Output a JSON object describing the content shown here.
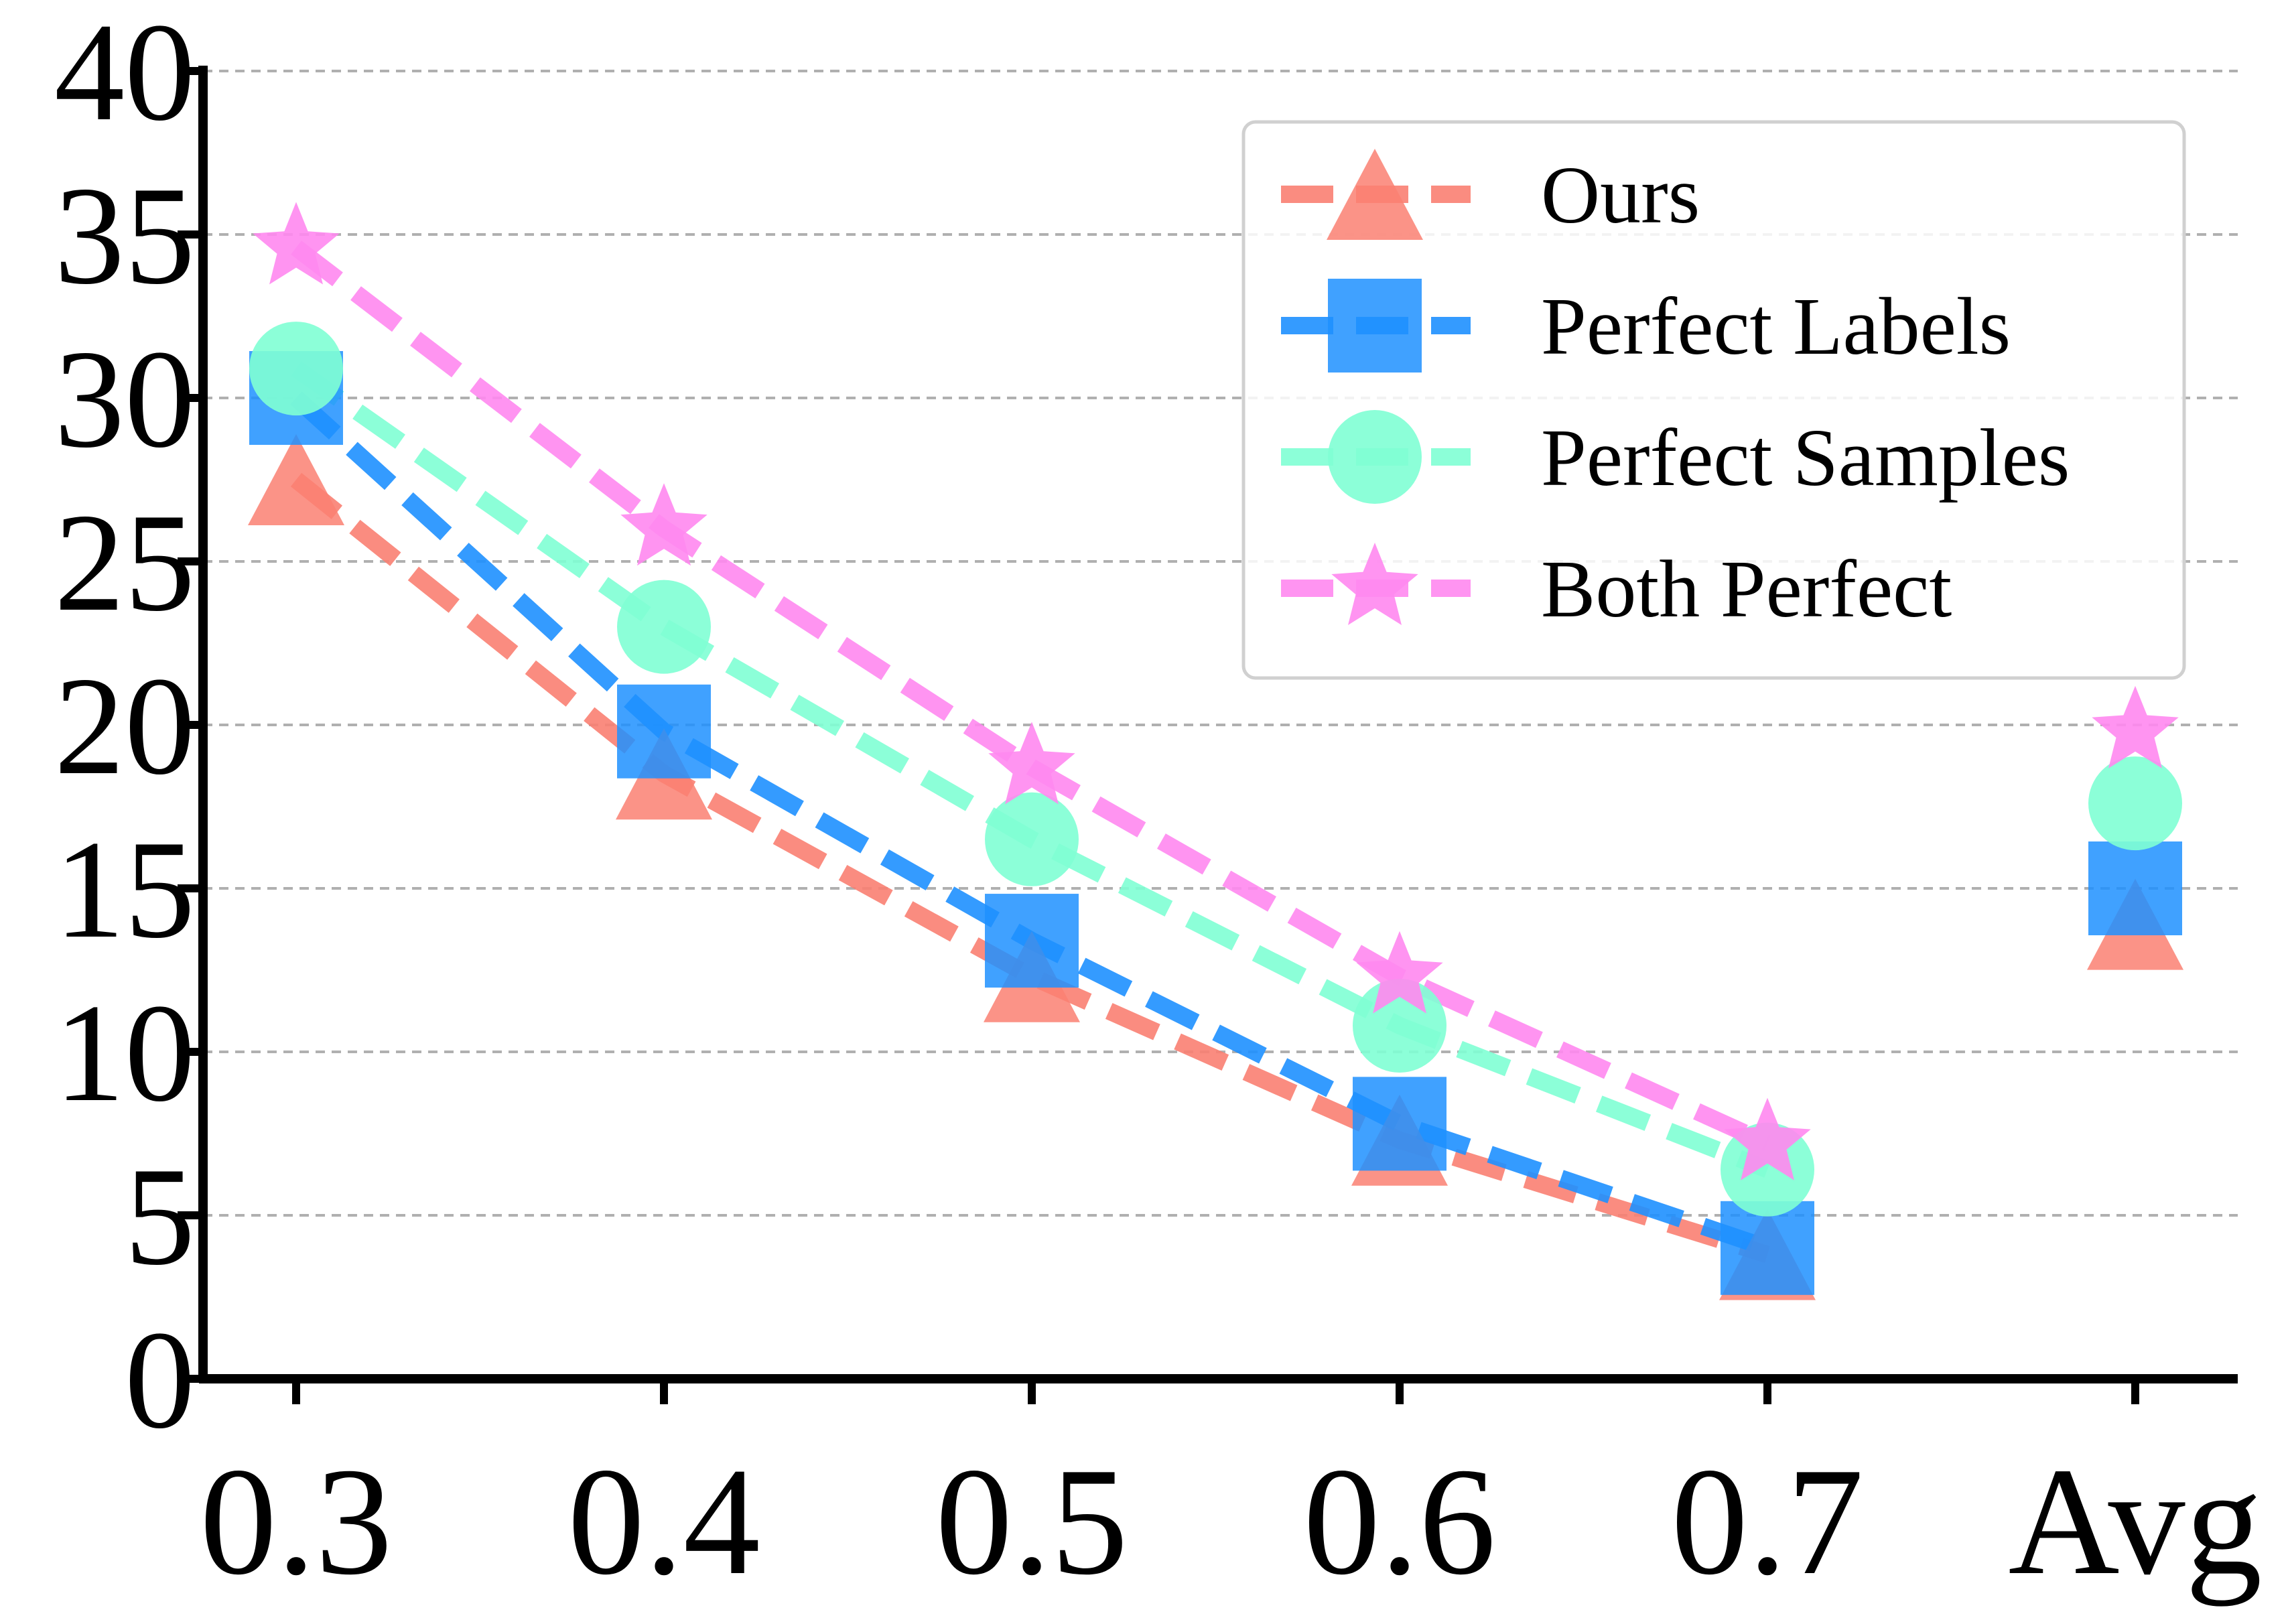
{
  "chart_data": {
    "type": "line",
    "categories": [
      "0.3",
      "0.4",
      "0.5",
      "0.6",
      "0.7",
      "Avg"
    ],
    "ylim": [
      0,
      40
    ],
    "yticks": [
      0,
      5,
      10,
      15,
      20,
      25,
      30,
      35,
      40
    ],
    "grid": "horizontal dashed",
    "legend_position": "top-right",
    "series": [
      {
        "name": "Ours",
        "marker": "triangle",
        "color": "#FA8072",
        "values": [
          27.5,
          18.5,
          12.3,
          7.3,
          3.8,
          13.9
        ]
      },
      {
        "name": "Perfect Labels",
        "marker": "square",
        "color": "#1E90FF",
        "values": [
          30.0,
          19.8,
          13.4,
          7.8,
          4.0,
          15.0
        ]
      },
      {
        "name": "Perfect Samples",
        "marker": "circle",
        "color": "#7FFFD4",
        "values": [
          30.9,
          23.0,
          16.5,
          10.8,
          6.4,
          17.6
        ]
      },
      {
        "name": "Both Perfect",
        "marker": "star",
        "color": "#FF88F0",
        "values": [
          34.6,
          26.0,
          18.7,
          12.3,
          7.2,
          19.8
        ]
      }
    ]
  }
}
